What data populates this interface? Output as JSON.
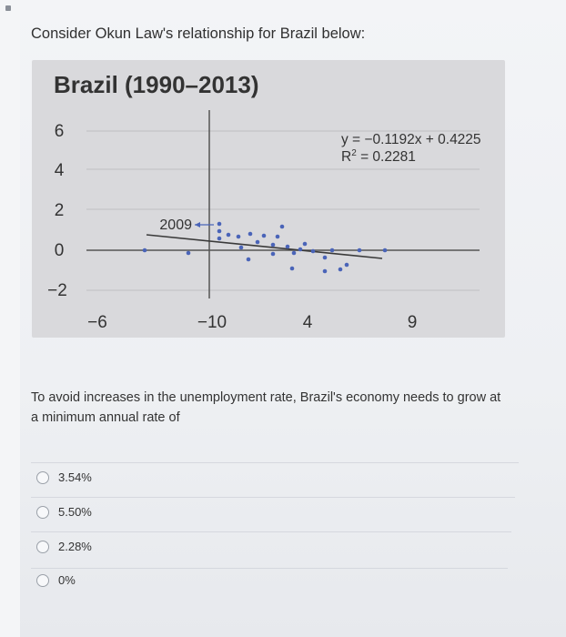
{
  "question": "Consider Okun Law's relationship for Brazil below:",
  "chart_data": {
    "type": "scatter",
    "title": "Brazil (1990–2013)",
    "y_ticks": [
      "6",
      "4",
      "2",
      "0",
      "−2"
    ],
    "x_ticks": [
      "−6",
      "−10",
      "4",
      "9"
    ],
    "equation": "y = −0.1192x + 0.4225",
    "r2_label": "R",
    "r2_sup": "2",
    "r2_value": " = 0.2281",
    "annotation": "2009",
    "grid": true,
    "colors": {
      "points": "#4a64b8",
      "trend": "#3a3a3a",
      "panel": "#d9d9dc",
      "gridline": "#bfbfbf"
    }
  },
  "prompt_text": "To avoid increases in the unemployment rate, Brazil's economy needs to grow at a minimum annual rate of",
  "options": [
    {
      "label": "3.54%"
    },
    {
      "label": "5.50%"
    },
    {
      "label": "2.28%"
    },
    {
      "label": "0%"
    }
  ]
}
